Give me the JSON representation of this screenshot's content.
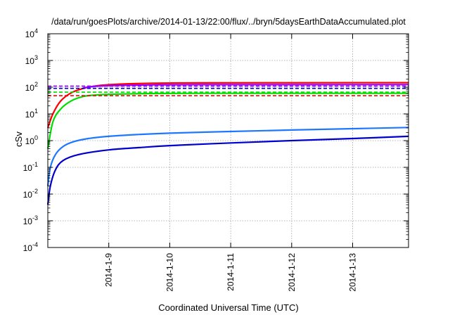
{
  "chart_data": {
    "type": "line",
    "title": "/data/run/goesPlots/archive/2014-01-13/22:00/flux/../bryn/5daysEarthDataAccumulated.plot",
    "xlabel": "Coordinated Universal Time (UTC)",
    "ylabel": "cSv",
    "x_range": [
      "2014-01-08",
      "2014-01-13T22:00"
    ],
    "x_ticks": [
      "2014-1-9",
      "2014-1-10",
      "2014-1-11",
      "2014-1-12",
      "2014-1-13"
    ],
    "y_scale": "log",
    "ylim": [
      0.0001,
      10000
    ],
    "y_ticks": [
      {
        "base": "10",
        "exp": "4"
      },
      {
        "base": "10",
        "exp": "3"
      },
      {
        "base": "10",
        "exp": "2"
      },
      {
        "base": "10",
        "exp": "1"
      },
      {
        "base": "10",
        "exp": "0"
      },
      {
        "base": "10",
        "exp": "-1"
      },
      {
        "base": "10",
        "exp": "-2"
      },
      {
        "base": "10",
        "exp": "-3"
      },
      {
        "base": "10",
        "exp": "-4"
      }
    ],
    "grid": true,
    "series": [
      {
        "color": "#ff0000",
        "style": "solid",
        "x": [
          "2014-01-08T00:00",
          "2014-01-08T02:00",
          "2014-01-08T05:00",
          "2014-01-08T09:00",
          "2014-01-08T14:00",
          "2014-01-08T20:00",
          "2014-01-09T06:00",
          "2014-01-09T18:00",
          "2014-01-10T12:00",
          "2014-01-13T22:00"
        ],
        "y": [
          3,
          10,
          30,
          60,
          90,
          115,
          132,
          140,
          145,
          147
        ]
      },
      {
        "color": "#9900ff",
        "style": "solid",
        "x": [
          "2014-01-08T14:00",
          "2014-01-08T20:00",
          "2014-01-09T06:00",
          "2014-01-09T18:00",
          "2014-01-10T12:00",
          "2014-01-13T22:00"
        ],
        "y": [
          95,
          110,
          118,
          122,
          124,
          125
        ]
      },
      {
        "color": "#00dd00",
        "style": "solid",
        "x": [
          "2014-01-08T00:00",
          "2014-01-08T02:00",
          "2014-01-08T05:00",
          "2014-01-08T09:00",
          "2014-01-08T14:00",
          "2014-01-08T20:00",
          "2014-01-09T06:00",
          "2014-01-09T18:00",
          "2014-01-10T12:00",
          "2014-01-13T22:00"
        ],
        "y": [
          0.5,
          5,
          15,
          30,
          45,
          52,
          56,
          58,
          59,
          59
        ]
      },
      {
        "color": "#1e78ff",
        "style": "solid",
        "x": [
          "2014-01-08T00:00",
          "2014-01-08T01:00",
          "2014-01-08T03:00",
          "2014-01-08T06:00",
          "2014-01-08T10:00",
          "2014-01-08T16:00",
          "2014-01-09T00:00",
          "2014-01-09T12:00",
          "2014-01-10T00:00",
          "2014-01-11T00:00",
          "2014-01-12T00:00",
          "2014-01-13T00:00",
          "2014-01-13T22:00"
        ],
        "y": [
          0.02,
          0.1,
          0.3,
          0.6,
          0.9,
          1.2,
          1.45,
          1.7,
          1.9,
          2.2,
          2.5,
          2.8,
          3.1
        ]
      },
      {
        "color": "#0000cc",
        "style": "solid",
        "x": [
          "2014-01-08T00:00",
          "2014-01-08T01:00",
          "2014-01-08T03:00",
          "2014-01-08T06:00",
          "2014-01-08T12:00",
          "2014-01-09T00:00",
          "2014-01-09T12:00",
          "2014-01-10T00:00",
          "2014-01-11T00:00",
          "2014-01-12T00:00",
          "2014-01-13T00:00",
          "2014-01-13T22:00"
        ],
        "y": [
          0.004,
          0.02,
          0.08,
          0.18,
          0.3,
          0.45,
          0.55,
          0.65,
          0.82,
          1.0,
          1.2,
          1.45
        ]
      },
      {
        "color": "#9900ff",
        "style": "dashed",
        "y_const": 110
      },
      {
        "color": "#0000cc",
        "style": "dashed",
        "y_const": 90
      },
      {
        "color": "#00dd00",
        "style": "dashed",
        "y_const": 65
      },
      {
        "color": "#ff0000",
        "style": "dashed",
        "y_const": 48
      }
    ]
  }
}
